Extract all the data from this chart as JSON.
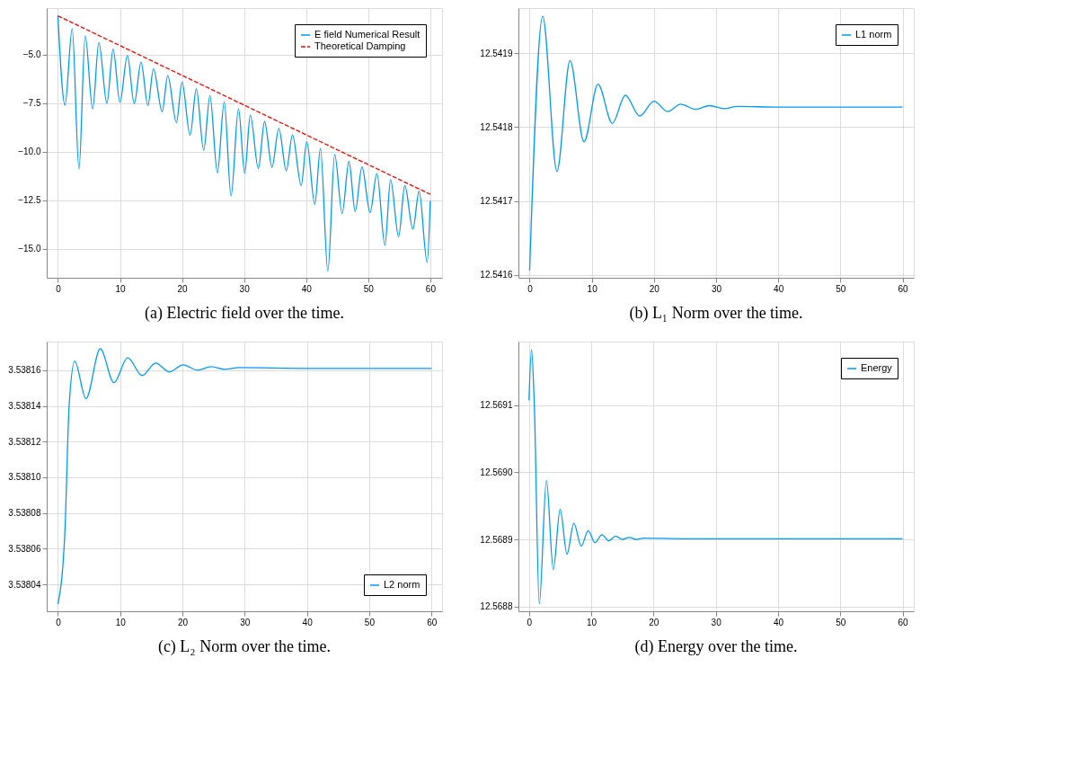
{
  "chart_data": [
    {
      "type": "line",
      "title": "(a) Electric field over the time.",
      "xlim": [
        -1.8,
        61.9
      ],
      "ylim": [
        -16.5,
        -2.6
      ],
      "xticks": [
        0,
        10,
        20,
        30,
        40,
        50,
        60
      ],
      "yticks": [
        {
          "value": -5,
          "label": "−5.0"
        },
        {
          "value": -7.5,
          "label": "−7.5"
        },
        {
          "value": -10,
          "label": "−10.0"
        },
        {
          "value": -12.5,
          "label": "−12.5"
        },
        {
          "value": -15,
          "label": "−15.0"
        }
      ],
      "grid": true,
      "legend": "top right",
      "series": [
        {
          "name": "E field Numerical Result",
          "color": "#009af9",
          "line_style": "solid",
          "x": [
            0,
            1.15,
            2.3,
            3.4,
            4.4,
            5.6,
            6.6,
            7.9,
            8.9,
            10.0,
            11.2,
            12.3,
            13.4,
            14.5,
            15.4,
            16.8,
            17.7,
            19.1,
            20.0,
            21.3,
            22.3,
            23.5,
            24.5,
            25.7,
            26.8,
            27.9,
            29.1,
            30.1,
            31.0,
            32.3,
            33.3,
            34.5,
            35.6,
            36.8,
            37.8,
            39.2,
            40.1,
            41.4,
            42.3,
            43.5,
            44.6,
            45.8,
            46.9,
            47.9,
            49.0,
            50.3,
            51.4,
            52.7,
            53.6,
            54.9,
            55.9,
            57.2,
            58.2,
            59.5,
            60
          ],
          "values": [
            -3.0,
            -7.6,
            -3.66,
            -10.9,
            -4.03,
            -7.8,
            -4.38,
            -7.5,
            -4.71,
            -7.46,
            -5.04,
            -7.53,
            -5.39,
            -7.62,
            -5.73,
            -7.94,
            -6.08,
            -8.5,
            -6.42,
            -9.16,
            -6.77,
            -9.92,
            -7.11,
            -11.09,
            -7.44,
            -12.29,
            -7.78,
            -11.12,
            -8.12,
            -10.87,
            -8.45,
            -10.8,
            -8.8,
            -10.98,
            -9.14,
            -11.74,
            -9.49,
            -12.72,
            -9.83,
            -16.16,
            -10.15,
            -13.19,
            -10.5,
            -13.08,
            -10.79,
            -13.14,
            -11.12,
            -14.82,
            -11.44,
            -14.38,
            -11.75,
            -14.0,
            -12.04,
            -15.7,
            -12.54
          ]
        },
        {
          "name": "Theoretical Damping",
          "color": "#ff0000",
          "line_style": "dashed",
          "x": [
            0,
            60
          ],
          "values": [
            -3.0,
            -12.2
          ]
        }
      ]
    },
    {
      "type": "line",
      "title": "(b) L₁ Norm over the time.",
      "xlim": [
        -1.8,
        61.8
      ],
      "ylim": [
        12.541596,
        12.541961
      ],
      "xticks": [
        0,
        10,
        20,
        30,
        40,
        50,
        60
      ],
      "yticks": [
        12.5416,
        12.5417,
        12.5418,
        12.5419
      ],
      "grid": true,
      "legend": "top right",
      "series": [
        {
          "name": "L1 norm",
          "color": "#009af9",
          "line_style": "solid",
          "x": [
            0,
            2.1,
            4.4,
            6.5,
            8.75,
            11.0,
            13.3,
            15.4,
            17.7,
            20.0,
            22.2,
            24.3,
            26.7,
            28.9,
            31.3,
            33.4,
            40,
            60
          ],
          "values": [
            12.541606,
            12.54195,
            12.54174,
            12.54189,
            12.54178,
            12.541858,
            12.541805,
            12.541843,
            12.541815,
            12.541835,
            12.541821,
            12.541831,
            12.541824,
            12.541829,
            12.541825,
            12.541828,
            12.541827,
            12.541827
          ]
        }
      ]
    },
    {
      "type": "line",
      "title": "(c) L₂ Norm over the time.",
      "xlim": [
        -1.8,
        61.7
      ],
      "ylim": [
        3.538025,
        3.538176
      ],
      "xticks": [
        0,
        10,
        20,
        30,
        40,
        50,
        60
      ],
      "yticks": [
        3.53804,
        3.53806,
        3.53808,
        {
          "value": 3.5381,
          "label": "3.53810"
        },
        3.53812,
        3.53814,
        3.53816
      ],
      "grid": true,
      "legend": "bottom right",
      "series": [
        {
          "name": "L2 norm",
          "color": "#009af9",
          "line_style": "solid",
          "x": [
            0,
            1.1,
            1.8,
            2.7,
            4.5,
            6.8,
            9.0,
            11.2,
            13.5,
            15.7,
            17.9,
            20.1,
            22.4,
            24.6,
            26.8,
            29.1,
            40,
            60
          ],
          "values": [
            3.538029,
            3.538068,
            3.53814,
            3.538165,
            3.538144,
            3.538172,
            3.538153,
            3.538167,
            3.538157,
            3.538164,
            3.538159,
            3.538163,
            3.53816,
            3.538162,
            3.5381605,
            3.5381615,
            3.538161,
            3.538161
          ]
        }
      ]
    },
    {
      "type": "line",
      "title": "(d) Energy over the time.",
      "xlim": [
        -1.7,
        61.8
      ],
      "ylim": [
        12.568793,
        12.5691945
      ],
      "xticks": [
        0,
        10,
        20,
        30,
        40,
        50,
        60
      ],
      "yticks": [
        12.5688,
        12.5689,
        {
          "value": 12.569,
          "label": "12.5690"
        },
        12.5691
      ],
      "grid": true,
      "legend": "top right",
      "series": [
        {
          "name": "Energy",
          "color": "#009af9",
          "line_style": "solid",
          "x": [
            0,
            0.4,
            0.85,
            1.65,
            2.8,
            3.9,
            5.0,
            6.1,
            7.2,
            8.4,
            9.5,
            10.6,
            11.7,
            12.8,
            13.9,
            15.0,
            16.1,
            17.2,
            18.4,
            25,
            60
          ],
          "values": [
            12.569107,
            12.569183,
            12.569101,
            12.568804,
            12.568988,
            12.568855,
            12.568945,
            12.568878,
            12.568924,
            12.56889,
            12.568913,
            12.568895,
            12.568907,
            12.568898,
            12.568905,
            12.5689,
            12.568903,
            12.5689,
            12.568902,
            12.568901,
            12.568901
          ]
        }
      ]
    }
  ]
}
